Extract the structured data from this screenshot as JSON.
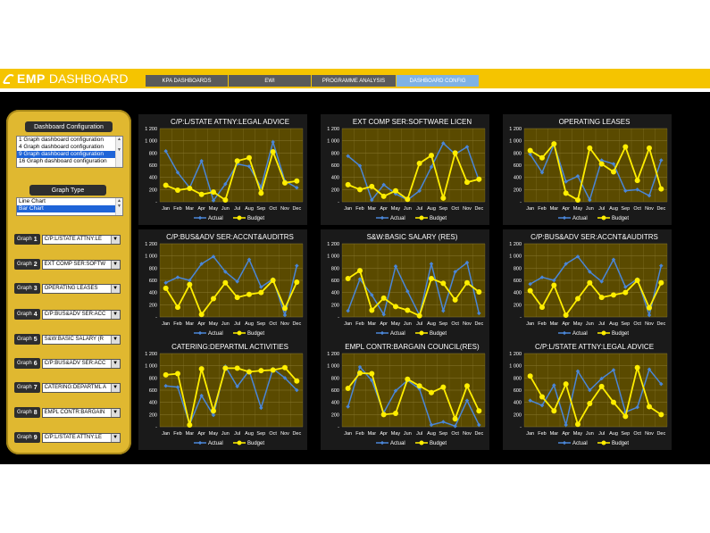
{
  "header": {
    "app_name_bold": "EMP",
    "app_name_rest": "DASHBOARD",
    "tabs": [
      {
        "label": "KPA DASHBOARDS",
        "active": false
      },
      {
        "label": "EWI",
        "active": false
      },
      {
        "label": "PROGRAMME ANALYSIS",
        "active": false
      },
      {
        "label": "DASHBOARD CONFIG",
        "active": true
      }
    ]
  },
  "sidebar": {
    "config_title": "Dashboard Configuration",
    "config_options": [
      "1 Graph dashboard configuration",
      "4 Graph dashboard configuration",
      "9 Graph dashboard configuration",
      "16 Graph dashboard configuration"
    ],
    "config_selected": 2,
    "graph_type_title": "Graph Type",
    "graph_type_options": [
      "Line Chart",
      "Bar Chart"
    ],
    "graph_type_selected": 1,
    "graphs": [
      {
        "label": "Graph",
        "num": "1",
        "value": "C/P:L/STATE ATTNY:LE"
      },
      {
        "label": "Graph",
        "num": "2",
        "value": "EXT COMP SER:SOFTW"
      },
      {
        "label": "Graph",
        "num": "3",
        "value": "OPERATING LEASES"
      },
      {
        "label": "Graph",
        "num": "4",
        "value": "C/P:BUS&ADV SER:ACC"
      },
      {
        "label": "Graph",
        "num": "5",
        "value": "S&W:BASIC SALARY (R"
      },
      {
        "label": "Graph",
        "num": "6",
        "value": "C/P:BUS&ADV SER:ACC"
      },
      {
        "label": "Graph",
        "num": "7",
        "value": "CATERING:DEPARTML A"
      },
      {
        "label": "Graph",
        "num": "8",
        "value": "EMPL CONTR:BARGAIN"
      },
      {
        "label": "Graph",
        "num": "9",
        "value": "C/P:L/STATE ATTNY:LE"
      }
    ]
  },
  "colors": {
    "actual": "#4a86d8",
    "budget": "#ffee00",
    "plot_bg": "#5a4a00",
    "grid": "#8a7a30"
  },
  "chart_data": [
    {
      "type": "line",
      "title": "C/P:L/STATE ATTNY:LEGAL ADVICE",
      "categories": [
        "Jan",
        "Feb",
        "Mar",
        "Apr",
        "May",
        "Jun",
        "Jul",
        "Aug",
        "Sep",
        "Oct",
        "Nov",
        "Dec"
      ],
      "ylim": [
        0,
        1200
      ],
      "yticks": [
        "-",
        "200",
        "400",
        "600",
        "800",
        "1 000",
        "1 200"
      ],
      "legend": [
        "Actual",
        "Budget"
      ],
      "series": [
        {
          "name": "Actual",
          "values": [
            830,
            480,
            230,
            670,
            20,
            290,
            620,
            580,
            240,
            980,
            340,
            230
          ]
        },
        {
          "name": "Budget",
          "values": [
            270,
            190,
            220,
            120,
            160,
            30,
            670,
            720,
            140,
            820,
            310,
            340
          ]
        }
      ]
    },
    {
      "type": "line",
      "title": "EXT COMP SER:SOFTWARE LICEN",
      "categories": [
        "Jan",
        "Feb",
        "Mar",
        "Apr",
        "May",
        "Jun",
        "Jul",
        "Aug",
        "Sep",
        "Oct",
        "Nov",
        "Dec"
      ],
      "ylim": [
        0,
        1200
      ],
      "yticks": [
        "-",
        "200",
        "400",
        "600",
        "800",
        "1 000",
        "1 200"
      ],
      "legend": [
        "Actual",
        "Budget"
      ],
      "series": [
        {
          "name": "Actual",
          "values": [
            750,
            590,
            30,
            280,
            130,
            30,
            180,
            570,
            960,
            780,
            900,
            350
          ]
        },
        {
          "name": "Budget",
          "values": [
            280,
            200,
            250,
            90,
            180,
            40,
            630,
            760,
            60,
            800,
            320,
            370
          ]
        }
      ]
    },
    {
      "type": "line",
      "title": "OPERATING LEASES",
      "categories": [
        "Jan",
        "Feb",
        "Mar",
        "Apr",
        "May",
        "Jun",
        "Jul",
        "Aug",
        "Sep",
        "Oct",
        "Nov",
        "Dec"
      ],
      "ylim": [
        0,
        1200
      ],
      "yticks": [
        "-",
        "200",
        "400",
        "600",
        "800",
        "1 000",
        "1 200"
      ],
      "legend": [
        "Actual",
        "Budget"
      ],
      "series": [
        {
          "name": "Actual",
          "values": [
            780,
            480,
            940,
            330,
            420,
            30,
            680,
            620,
            180,
            200,
            100,
            680
          ]
        },
        {
          "name": "Budget",
          "values": [
            840,
            720,
            950,
            140,
            30,
            880,
            620,
            490,
            900,
            350,
            880,
            210
          ]
        }
      ]
    },
    {
      "type": "line",
      "title": "C/P:BUS&ADV SER:ACCNT&AUDITRS",
      "categories": [
        "Jan",
        "Feb",
        "Mar",
        "Apr",
        "May",
        "Jun",
        "Jul",
        "Aug",
        "Sep",
        "Oct",
        "Nov",
        "Dec"
      ],
      "ylim": [
        0,
        1200
      ],
      "yticks": [
        "-",
        "200",
        "400",
        "600",
        "800",
        "1 000",
        "1 200"
      ],
      "legend": [
        "Actual",
        "Budget"
      ],
      "series": [
        {
          "name": "Actual",
          "values": [
            560,
            650,
            600,
            870,
            990,
            740,
            580,
            940,
            490,
            620,
            30,
            840
          ]
        },
        {
          "name": "Budget",
          "values": [
            470,
            160,
            530,
            40,
            300,
            560,
            320,
            370,
            400,
            600,
            140,
            570
          ]
        }
      ]
    },
    {
      "type": "line",
      "title": "S&W:BASIC SALARY (RES)",
      "categories": [
        "Jan",
        "Feb",
        "Mar",
        "Apr",
        "May",
        "Jun",
        "Jul",
        "Aug",
        "Sep",
        "Oct",
        "Nov",
        "Dec"
      ],
      "ylim": [
        0,
        1200
      ],
      "yticks": [
        "-",
        "200",
        "400",
        "600",
        "800",
        "1 000",
        "1 200"
      ],
      "legend": [
        "Actual",
        "Budget"
      ],
      "series": [
        {
          "name": "Actual",
          "values": [
            100,
            620,
            360,
            40,
            830,
            420,
            30,
            870,
            100,
            740,
            890,
            60
          ]
        },
        {
          "name": "Budget",
          "values": [
            630,
            760,
            110,
            310,
            170,
            110,
            20,
            630,
            550,
            280,
            560,
            410
          ]
        }
      ]
    },
    {
      "type": "line",
      "title": "C/P:BUS&ADV SER:ACCNT&AUDITRS",
      "categories": [
        "Jan",
        "Feb",
        "Mar",
        "Apr",
        "May",
        "Jun",
        "Jul",
        "Aug",
        "Sep",
        "Oct",
        "Nov",
        "Dec"
      ],
      "ylim": [
        0,
        1200
      ],
      "yticks": [
        "-",
        "200",
        "400",
        "600",
        "800",
        "1 000",
        "1 200"
      ],
      "legend": [
        "Actual",
        "Budget"
      ],
      "series": [
        {
          "name": "Actual",
          "values": [
            540,
            650,
            600,
            870,
            990,
            740,
            580,
            940,
            490,
            620,
            30,
            840
          ]
        },
        {
          "name": "Budget",
          "values": [
            430,
            160,
            520,
            30,
            300,
            560,
            320,
            360,
            400,
            600,
            150,
            560
          ]
        }
      ]
    },
    {
      "type": "line",
      "title": "CATERING:DEPARTML ACTIVITIES",
      "categories": [
        "Jan",
        "Feb",
        "Mar",
        "Apr",
        "May",
        "Jun",
        "Jul",
        "Aug",
        "Sep",
        "Oct",
        "Nov",
        "Dec"
      ],
      "ylim": [
        0,
        1200
      ],
      "yticks": [
        "-",
        "200",
        "400",
        "600",
        "800",
        "1 000",
        "1 200"
      ],
      "legend": [
        "Actual",
        "Budget"
      ],
      "series": [
        {
          "name": "Actual",
          "values": [
            670,
            650,
            40,
            510,
            190,
            990,
            660,
            920,
            310,
            950,
            800,
            600
          ]
        },
        {
          "name": "Budget",
          "values": [
            850,
            870,
            30,
            950,
            260,
            960,
            960,
            900,
            920,
            930,
            970,
            750
          ]
        }
      ]
    },
    {
      "type": "line",
      "title": "EMPL CONTR:BARGAIN COUNCIL(RES)",
      "categories": [
        "Jan",
        "Feb",
        "Mar",
        "Apr",
        "May",
        "Jun",
        "Jul",
        "Aug",
        "Sep",
        "Oct",
        "Nov",
        "Dec"
      ],
      "ylim": [
        0,
        1200
      ],
      "yticks": [
        "-",
        "200",
        "400",
        "600",
        "800",
        "1 000",
        "1 200"
      ],
      "legend": [
        "Actual",
        "Budget"
      ],
      "series": [
        {
          "name": "Actual",
          "values": [
            330,
            980,
            760,
            230,
            590,
            760,
            620,
            30,
            80,
            10,
            430,
            30
          ]
        },
        {
          "name": "Budget",
          "values": [
            630,
            880,
            870,
            200,
            220,
            780,
            670,
            560,
            650,
            130,
            670,
            260
          ]
        }
      ]
    },
    {
      "type": "line",
      "title": "C/P:L/STATE ATTNY:LEGAL ADVICE",
      "categories": [
        "Jan",
        "Feb",
        "Mar",
        "Apr",
        "May",
        "Jun",
        "Jul",
        "Aug",
        "Sep",
        "Oct",
        "Nov",
        "Dec"
      ],
      "ylim": [
        0,
        1200
      ],
      "yticks": [
        "-",
        "200",
        "400",
        "600",
        "800",
        "1 000",
        "1 200"
      ],
      "legend": [
        "Actual",
        "Budget"
      ],
      "series": [
        {
          "name": "Actual",
          "values": [
            430,
            350,
            680,
            30,
            910,
            600,
            790,
            930,
            240,
            320,
            940,
            700
          ]
        },
        {
          "name": "Budget",
          "values": [
            830,
            490,
            260,
            700,
            40,
            380,
            660,
            400,
            170,
            970,
            330,
            200
          ]
        }
      ]
    }
  ]
}
